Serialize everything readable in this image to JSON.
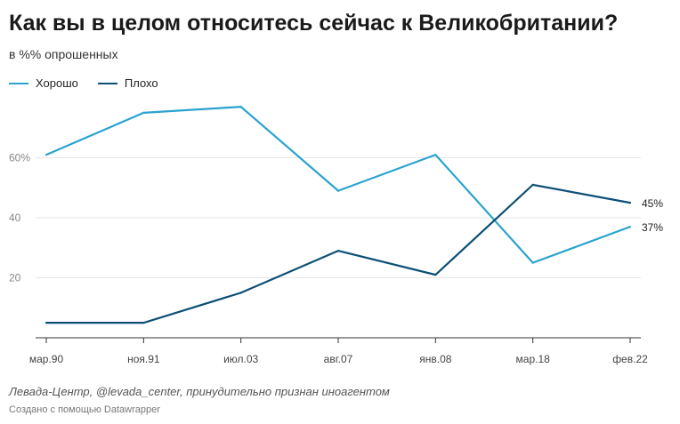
{
  "header": {
    "title": "Как вы в целом относитесь сейчас к Великобритании?",
    "subtitle": "в %% опрошенных"
  },
  "footer": {
    "source": "Левада-Центр, @levada_center, принудительно признан иноагентом",
    "credit": "Создано с помощью Datawrapper"
  },
  "colors": {
    "good": "#29a3cf",
    "bad": "#0b4f75",
    "grid": "#e6e6e6",
    "axis": "#333333",
    "tick_text": "#888888"
  },
  "chart_data": {
    "type": "line",
    "categories": [
      "мар.90",
      "ноя.91",
      "июл.03",
      "авг.07",
      "янв.08",
      "мар.18",
      "фев.22"
    ],
    "series": [
      {
        "name": "Хорошо",
        "values": [
          61,
          75,
          77,
          49,
          61,
          25,
          37
        ],
        "end_label": "37%"
      },
      {
        "name": "Плохо",
        "values": [
          5,
          5,
          15,
          29,
          21,
          51,
          45
        ],
        "end_label": "45%"
      }
    ],
    "yticks": [
      {
        "value": 20,
        "label": "20"
      },
      {
        "value": 40,
        "label": "40"
      },
      {
        "value": 60,
        "label": "60%"
      }
    ],
    "ylim": [
      0,
      80
    ],
    "grid": true,
    "legend": "top-left"
  }
}
